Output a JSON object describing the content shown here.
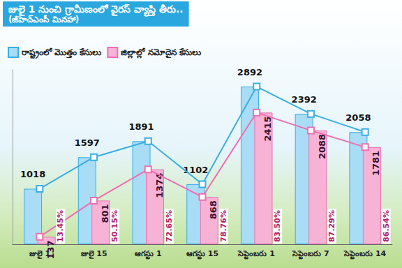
{
  "chart_data": {
    "type": "bar",
    "title": "జులై 1 నుంచి గ్రామీణంలో వైరస్ వ్యాప్తి తీరు..",
    "subtitle": "(జీహెచ్ఎంసీ మినహా)",
    "categories": [
      "జులై 1",
      "జులై 15",
      "ఆగస్టు 1",
      "ఆగస్టు 15",
      "సెప్టెంబరు 1",
      "సెప్టెంబరు 7",
      "సెప్టెంబరు 14"
    ],
    "series": [
      {
        "name": "రాష్ట్రంలో మొత్తం కేసులు",
        "color": "#3aaee3",
        "values": [
          1018,
          1597,
          1891,
          1102,
          2892,
          2392,
          2058
        ],
        "line_style": "solid",
        "marker": "square"
      },
      {
        "name": "జిల్లాల్లో నమోదైన కేసులు",
        "color": "#ee6fb0",
        "values": [
          137,
          801,
          1374,
          868,
          2415,
          2088,
          1781
        ],
        "line_style": "solid",
        "marker": "square"
      }
    ],
    "annotations": [
      "13.45%",
      "50.15%",
      "72.65%",
      "78.76%",
      "83.50%",
      "87.29%",
      "86.54%"
    ],
    "ylim": [
      0,
      3200
    ],
    "grid": false,
    "legend": "top-left",
    "data_labels": true,
    "tick_labels": "x"
  }
}
